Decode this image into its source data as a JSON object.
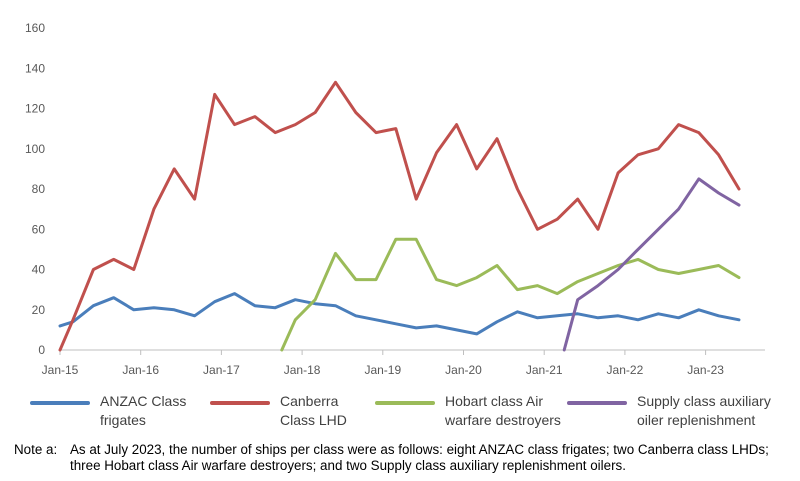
{
  "chart_data": {
    "type": "line",
    "title": "",
    "xlabel": "",
    "ylabel": "",
    "ylim": [
      0,
      160
    ],
    "yticks": [
      0,
      20,
      40,
      60,
      80,
      100,
      120,
      140,
      160
    ],
    "x_ticks": [
      "Jan-15",
      "Jan-16",
      "Jan-17",
      "Jan-18",
      "Jan-19",
      "Jan-20",
      "Jan-21",
      "Jan-22",
      "Jan-23"
    ],
    "grid": false,
    "legend_position": "bottom",
    "series": [
      {
        "name": "ANZAC Class frigates",
        "color": "#4a7ebb",
        "x": [
          "2015-01-01",
          "2015-03-01",
          "2015-06-01",
          "2015-09-01",
          "2015-12-01",
          "2016-03-01",
          "2016-06-01",
          "2016-09-01",
          "2016-12-01",
          "2017-03-01",
          "2017-06-01",
          "2017-09-01",
          "2017-12-01",
          "2018-03-01",
          "2018-06-01",
          "2018-09-01",
          "2018-12-01",
          "2019-03-01",
          "2019-06-01",
          "2019-09-01",
          "2019-12-01",
          "2020-03-01",
          "2020-06-01",
          "2020-09-01",
          "2020-12-01",
          "2021-03-01",
          "2021-06-01",
          "2021-09-01",
          "2021-12-01",
          "2022-03-01",
          "2022-06-01",
          "2022-09-01",
          "2022-12-01",
          "2023-03-01",
          "2023-06-01"
        ],
        "values": [
          12,
          14,
          22,
          26,
          20,
          21,
          20,
          17,
          24,
          28,
          22,
          21,
          25,
          23,
          22,
          17,
          15,
          13,
          11,
          12,
          10,
          8,
          14,
          19,
          16,
          17,
          18,
          16,
          17,
          15,
          18,
          16,
          20,
          17,
          15
        ]
      },
      {
        "name": "Canberra Class LHD",
        "color": "#c0504d",
        "x": [
          "2015-01-01",
          "2015-03-01",
          "2015-06-01",
          "2015-09-01",
          "2015-12-01",
          "2016-03-01",
          "2016-06-01",
          "2016-09-01",
          "2016-12-01",
          "2017-03-01",
          "2017-06-01",
          "2017-09-01",
          "2017-12-01",
          "2018-03-01",
          "2018-06-01",
          "2018-09-01",
          "2018-12-01",
          "2019-03-01",
          "2019-06-01",
          "2019-09-01",
          "2019-12-01",
          "2020-03-01",
          "2020-06-01",
          "2020-09-01",
          "2020-12-01",
          "2021-03-01",
          "2021-06-01",
          "2021-09-01",
          "2021-12-01",
          "2022-03-01",
          "2022-06-01",
          "2022-09-01",
          "2022-12-01",
          "2023-03-01",
          "2023-06-01"
        ],
        "values": [
          0,
          15,
          40,
          45,
          40,
          70,
          90,
          75,
          127,
          112,
          116,
          108,
          112,
          118,
          133,
          118,
          108,
          110,
          75,
          98,
          112,
          90,
          105,
          80,
          60,
          65,
          75,
          60,
          88,
          97,
          100,
          112,
          108,
          97,
          80
        ]
      },
      {
        "name": "Hobart class Air warfare destroyers",
        "color": "#9bbb59",
        "x": [
          "2017-10-01",
          "2017-12-01",
          "2018-03-01",
          "2018-06-01",
          "2018-09-01",
          "2018-12-01",
          "2019-03-01",
          "2019-06-01",
          "2019-09-01",
          "2019-12-01",
          "2020-03-01",
          "2020-06-01",
          "2020-09-01",
          "2020-12-01",
          "2021-03-01",
          "2021-06-01",
          "2021-09-01",
          "2021-12-01",
          "2022-03-01",
          "2022-06-01",
          "2022-09-01",
          "2022-12-01",
          "2023-03-01",
          "2023-06-01"
        ],
        "values": [
          0,
          15,
          25,
          48,
          35,
          35,
          55,
          55,
          35,
          32,
          36,
          42,
          30,
          32,
          28,
          34,
          38,
          42,
          45,
          40,
          38,
          40,
          42,
          36
        ]
      },
      {
        "name": "Supply class auxiliary oiler replenishment",
        "color": "#8064a2",
        "x": [
          "2021-04-01",
          "2021-06-01",
          "2021-09-01",
          "2021-12-01",
          "2022-03-01",
          "2022-06-01",
          "2022-09-01",
          "2022-12-01",
          "2023-03-01",
          "2023-06-01"
        ],
        "values": [
          0,
          25,
          32,
          40,
          50,
          60,
          70,
          85,
          78,
          72
        ]
      }
    ]
  },
  "note": {
    "marker": "Note a:",
    "text": "As at July 2023, the number of ships per class were as follows: eight ANZAC class frigates; two Canberra class LHDs; three Hobart class Air warfare destroyers; and two Supply class auxiliary replenishment oilers."
  }
}
